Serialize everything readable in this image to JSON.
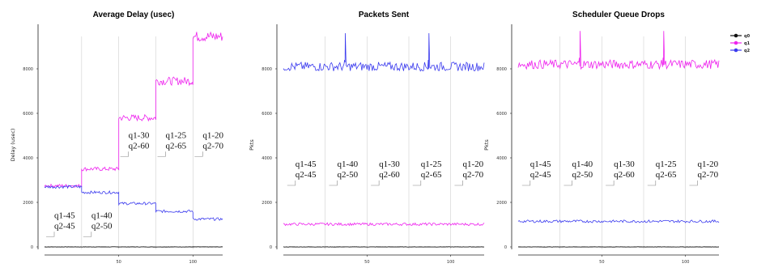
{
  "chart_data": [
    {
      "type": "line",
      "title": "Average Delay (usec)",
      "ylabel": "Delay (usec)",
      "xlim": [
        0,
        120
      ],
      "ylim": [
        0,
        10000
      ],
      "xticks": [
        50,
        100
      ],
      "yticks": [
        0,
        2000,
        4000,
        6000,
        8000
      ],
      "vlines": [
        25,
        50,
        75,
        100
      ],
      "series": [
        {
          "name": "q0",
          "color": "#111111",
          "segments": [
            [
              0,
              25,
              0
            ],
            [
              25,
              50,
              0
            ],
            [
              50,
              75,
              0
            ],
            [
              75,
              100,
              0
            ],
            [
              100,
              120,
              0
            ]
          ],
          "spikes": []
        },
        {
          "name": "q1",
          "color": "#ee22ee",
          "segments": [
            [
              0,
              25,
              2750
            ],
            [
              25,
              50,
              3500
            ],
            [
              50,
              75,
              5800
            ],
            [
              75,
              100,
              7450
            ],
            [
              100,
              120,
              9450
            ]
          ],
          "spikes": []
        },
        {
          "name": "q2",
          "color": "#3a3aee",
          "segments": [
            [
              0,
              25,
              2700
            ],
            [
              25,
              50,
              2450
            ],
            [
              50,
              75,
              1950
            ],
            [
              75,
              100,
              1600
            ],
            [
              100,
              120,
              1250
            ]
          ],
          "spikes": []
        }
      ],
      "annotations": [
        {
          "x": 12,
          "y": 1300,
          "lines": [
            "q1-45",
            "q2-45"
          ]
        },
        {
          "x": 37,
          "y": 1300,
          "lines": [
            "q1-40",
            "q2-50"
          ]
        },
        {
          "x": 62,
          "y": 4900,
          "lines": [
            "q1-30",
            "q2-60"
          ]
        },
        {
          "x": 87,
          "y": 4900,
          "lines": [
            "q1-25",
            "q2-65"
          ]
        },
        {
          "x": 112,
          "y": 4900,
          "lines": [
            "q1-20",
            "q2-70"
          ]
        }
      ]
    },
    {
      "type": "line",
      "title": "Packets Sent",
      "ylabel": "Pkts",
      "xlim": [
        0,
        120
      ],
      "ylim": [
        0,
        10000
      ],
      "xticks": [
        50,
        100
      ],
      "yticks": [
        0,
        2000,
        4000,
        6000,
        8000
      ],
      "vlines": [
        25,
        50,
        75,
        100
      ],
      "series": [
        {
          "name": "q0",
          "color": "#111111",
          "segments": [
            [
              0,
              120,
              0
            ]
          ],
          "spikes": []
        },
        {
          "name": "q1",
          "color": "#ee22ee",
          "segments": [
            [
              0,
              120,
              1020
            ]
          ],
          "spikes": []
        },
        {
          "name": "q2",
          "color": "#3a3aee",
          "segments": [
            [
              0,
              120,
              8100
            ]
          ],
          "spikes": [
            [
              37,
              9600
            ],
            [
              87,
              9600
            ]
          ]
        }
      ],
      "annotations": [
        {
          "x": 12,
          "y": 3600,
          "lines": [
            "q1-45",
            "q2-45"
          ]
        },
        {
          "x": 37,
          "y": 3600,
          "lines": [
            "q1-40",
            "q2-50"
          ]
        },
        {
          "x": 62,
          "y": 3600,
          "lines": [
            "q1-30",
            "q2-60"
          ]
        },
        {
          "x": 87,
          "y": 3600,
          "lines": [
            "q1-25",
            "q2-65"
          ]
        },
        {
          "x": 112,
          "y": 3600,
          "lines": [
            "q1-20",
            "q2-70"
          ]
        }
      ]
    },
    {
      "type": "line",
      "title": "Scheduler Queue Drops",
      "ylabel": "Pkts",
      "xlim": [
        0,
        120
      ],
      "ylim": [
        0,
        10000
      ],
      "xticks": [
        50,
        100
      ],
      "yticks": [
        0,
        2000,
        4000,
        6000,
        8000
      ],
      "vlines": [
        25,
        50,
        75,
        100
      ],
      "series": [
        {
          "name": "q0",
          "color": "#111111",
          "segments": [
            [
              0,
              120,
              0
            ]
          ],
          "spikes": []
        },
        {
          "name": "q1",
          "color": "#ee22ee",
          "segments": [
            [
              0,
              120,
              8200
            ]
          ],
          "spikes": [
            [
              37,
              9700
            ],
            [
              87,
              9700
            ]
          ]
        },
        {
          "name": "q2",
          "color": "#3a3aee",
          "segments": [
            [
              0,
              120,
              1150
            ]
          ],
          "spikes": []
        }
      ],
      "annotations": [
        {
          "x": 12,
          "y": 3600,
          "lines": [
            "q1-45",
            "q2-45"
          ]
        },
        {
          "x": 37,
          "y": 3600,
          "lines": [
            "q1-40",
            "q2-50"
          ]
        },
        {
          "x": 62,
          "y": 3600,
          "lines": [
            "q1-30",
            "q2-60"
          ]
        },
        {
          "x": 87,
          "y": 3600,
          "lines": [
            "q1-25",
            "q2-65"
          ]
        },
        {
          "x": 112,
          "y": 3600,
          "lines": [
            "q1-20",
            "q2-70"
          ]
        }
      ]
    }
  ],
  "legend": {
    "placement": "top-right",
    "items": [
      {
        "name": "q0",
        "color": "#111111"
      },
      {
        "name": "q1",
        "color": "#ee22ee"
      },
      {
        "name": "q2",
        "color": "#3a3aee"
      }
    ]
  }
}
